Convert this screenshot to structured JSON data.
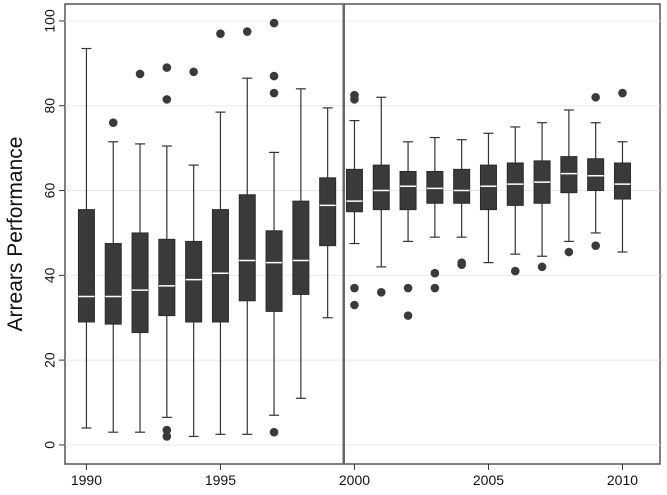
{
  "chart_data": {
    "type": "box",
    "title": "",
    "xlabel": "",
    "ylabel": "Arrears Performance",
    "xlim": [
      1989.2,
      2011.4
    ],
    "ylim": [
      -4.5,
      104
    ],
    "xticks": [
      1990,
      1995,
      2000,
      2005,
      2010
    ],
    "yticks": [
      0,
      20,
      40,
      60,
      80,
      100
    ],
    "grid": true,
    "reference_line_x": 1999.6,
    "box_color": "#3a3a3a",
    "outlier_color": "#3a3a3a",
    "boxes": [
      {
        "x": 1990,
        "whisker_low": 4,
        "q1": 29,
        "median": 35,
        "q3": 55.5,
        "whisker_high": 93.5,
        "outliers": []
      },
      {
        "x": 1991,
        "whisker_low": 3,
        "q1": 28.5,
        "median": 35,
        "q3": 47.5,
        "whisker_high": 71.5,
        "outliers": [
          76
        ]
      },
      {
        "x": 1992,
        "whisker_low": 3,
        "q1": 26.5,
        "median": 36.5,
        "q3": 50,
        "whisker_high": 71,
        "outliers": [
          87.5
        ]
      },
      {
        "x": 1993,
        "whisker_low": 6.5,
        "q1": 30.5,
        "median": 37.5,
        "q3": 48.5,
        "whisker_high": 70.5,
        "outliers": [
          89,
          81.5,
          3.5,
          2
        ]
      },
      {
        "x": 1994,
        "whisker_low": 2,
        "q1": 29,
        "median": 39,
        "q3": 48,
        "whisker_high": 66,
        "outliers": [
          88
        ]
      },
      {
        "x": 1995,
        "whisker_low": 2.5,
        "q1": 29,
        "median": 40.5,
        "q3": 55.5,
        "whisker_high": 78.5,
        "outliers": [
          97
        ]
      },
      {
        "x": 1996,
        "whisker_low": 2.5,
        "q1": 34,
        "median": 43.5,
        "q3": 59,
        "whisker_high": 86.5,
        "outliers": [
          97.5
        ]
      },
      {
        "x": 1997,
        "whisker_low": 7,
        "q1": 31.5,
        "median": 43,
        "q3": 50.5,
        "whisker_high": 69,
        "outliers": [
          99.5,
          87,
          83,
          3
        ]
      },
      {
        "x": 1998,
        "whisker_low": 11,
        "q1": 35.5,
        "median": 43.5,
        "q3": 57.5,
        "whisker_high": 84,
        "outliers": []
      },
      {
        "x": 1999,
        "whisker_low": 30,
        "q1": 47,
        "median": 56.5,
        "q3": 63,
        "whisker_high": 79.5,
        "outliers": []
      },
      {
        "x": 2000,
        "whisker_low": 47.5,
        "q1": 55,
        "median": 57.5,
        "q3": 65,
        "whisker_high": 76.5,
        "outliers": [
          82.5,
          81.5,
          37,
          33
        ]
      },
      {
        "x": 2001,
        "whisker_low": 42,
        "q1": 55.5,
        "median": 60,
        "q3": 66,
        "whisker_high": 82,
        "outliers": [
          36
        ]
      },
      {
        "x": 2002,
        "whisker_low": 48,
        "q1": 55.5,
        "median": 61,
        "q3": 64.5,
        "whisker_high": 71.5,
        "outliers": [
          37,
          30.5
        ]
      },
      {
        "x": 2003,
        "whisker_low": 49,
        "q1": 57,
        "median": 60.5,
        "q3": 64.5,
        "whisker_high": 72.5,
        "outliers": [
          40.5,
          37
        ]
      },
      {
        "x": 2004,
        "whisker_low": 49,
        "q1": 57,
        "median": 60,
        "q3": 65,
        "whisker_high": 72,
        "outliers": [
          43,
          42.5
        ]
      },
      {
        "x": 2005,
        "whisker_low": 43,
        "q1": 55.5,
        "median": 61,
        "q3": 66,
        "whisker_high": 73.5,
        "outliers": []
      },
      {
        "x": 2006,
        "whisker_low": 45,
        "q1": 56.5,
        "median": 61.5,
        "q3": 66.5,
        "whisker_high": 75,
        "outliers": [
          41
        ]
      },
      {
        "x": 2007,
        "whisker_low": 44.5,
        "q1": 57,
        "median": 62,
        "q3": 67,
        "whisker_high": 76,
        "outliers": [
          42
        ]
      },
      {
        "x": 2008,
        "whisker_low": 48,
        "q1": 59.5,
        "median": 64,
        "q3": 68,
        "whisker_high": 79,
        "outliers": [
          45.5
        ]
      },
      {
        "x": 2009,
        "whisker_low": 50,
        "q1": 60,
        "median": 63.5,
        "q3": 67.5,
        "whisker_high": 76,
        "outliers": [
          82,
          47
        ]
      },
      {
        "x": 2010,
        "whisker_low": 45.5,
        "q1": 58,
        "median": 61.5,
        "q3": 66.5,
        "whisker_high": 71.5,
        "outliers": [
          83
        ]
      }
    ]
  }
}
